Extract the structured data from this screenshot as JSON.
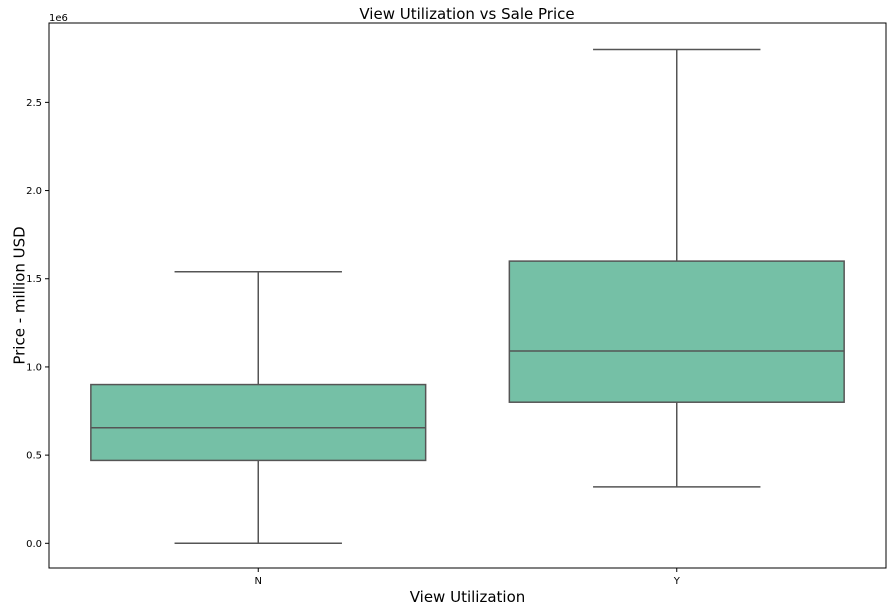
{
  "chart_data": {
    "type": "box",
    "title": "View Utilization vs Sale Price",
    "xlabel": "View Utilization",
    "ylabel": "Price - million USD",
    "y_offset_label": "1e6",
    "ylim": [
      -140000,
      2950000
    ],
    "yticks": [
      0,
      500000,
      1000000,
      1500000,
      2000000,
      2500000
    ],
    "ytick_labels": [
      "0.0",
      "0.5",
      "1.0",
      "1.5",
      "2.0",
      "2.5"
    ],
    "categories": [
      "N",
      "Y"
    ],
    "boxes": [
      {
        "category": "N",
        "whisker_low": 0,
        "q1": 470000,
        "median": 655000,
        "q3": 900000,
        "whisker_high": 1540000
      },
      {
        "category": "Y",
        "whisker_low": 320000,
        "q1": 800000,
        "median": 1090000,
        "q3": 1600000,
        "whisker_high": 2800000
      }
    ],
    "box_color": "#75c0a6",
    "line_color": "#555555",
    "grid": false,
    "legend": "none"
  }
}
